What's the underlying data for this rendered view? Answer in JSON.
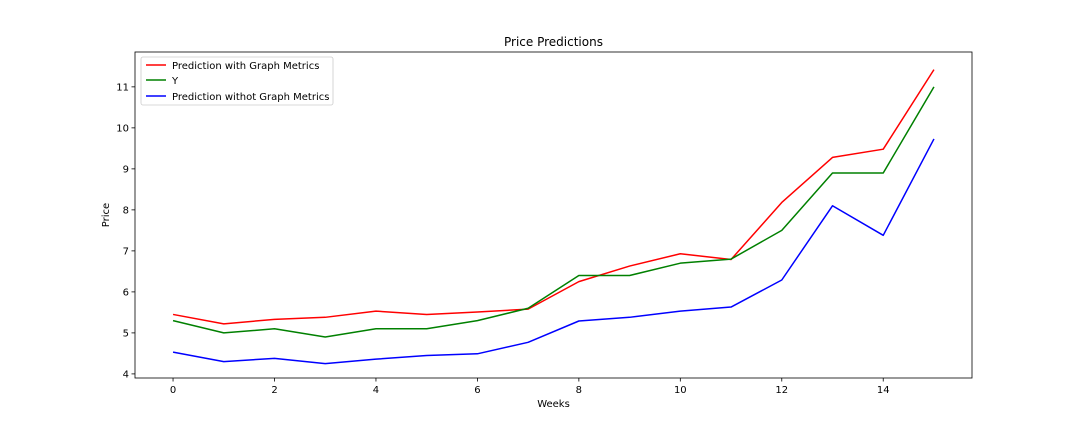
{
  "chart_data": {
    "type": "line",
    "title": "Price Predictions",
    "xlabel": "Weeks",
    "ylabel": "Price",
    "xlim": [
      -0.75,
      15.75
    ],
    "ylim": [
      3.9,
      11.85
    ],
    "xticks": [
      0,
      2,
      4,
      6,
      8,
      10,
      12,
      14
    ],
    "yticks": [
      4,
      5,
      6,
      7,
      8,
      9,
      10,
      11
    ],
    "grid": false,
    "legend_position": "top-left",
    "x": [
      0,
      1,
      2,
      3,
      4,
      5,
      6,
      7,
      8,
      9,
      10,
      11,
      12,
      13,
      14,
      15
    ],
    "series": [
      {
        "name": "Prediction with Graph Metrics",
        "color": "#ff0000",
        "values": [
          5.45,
          5.22,
          5.33,
          5.38,
          5.53,
          5.45,
          5.51,
          5.58,
          6.25,
          6.63,
          6.93,
          6.79,
          8.18,
          9.28,
          9.48,
          11.42
        ]
      },
      {
        "name": "Y",
        "color": "#008000",
        "values": [
          5.3,
          5.0,
          5.1,
          4.9,
          5.1,
          5.1,
          5.3,
          5.6,
          6.4,
          6.4,
          6.7,
          6.8,
          7.5,
          8.9,
          8.9,
          11.0
        ]
      },
      {
        "name": "Prediction withot Graph Metrics",
        "color": "#0000ff",
        "values": [
          4.53,
          4.3,
          4.38,
          4.25,
          4.36,
          4.45,
          4.49,
          4.77,
          5.29,
          5.38,
          5.53,
          5.63,
          6.29,
          8.1,
          7.38,
          9.73
        ]
      }
    ]
  }
}
